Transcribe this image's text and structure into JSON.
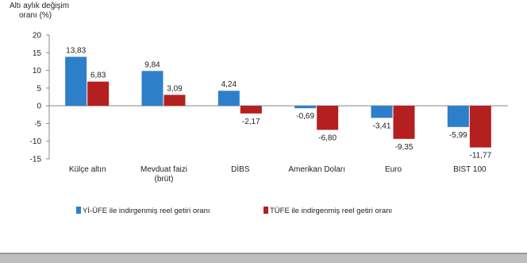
{
  "chart_data": {
    "type": "bar",
    "ylabel_line1": "Altı aylık değişim",
    "ylabel_line2": "oranı (%)",
    "ylim": [
      -15,
      20
    ],
    "yticks": [
      20,
      15,
      10,
      5,
      0,
      -5,
      -10,
      -15
    ],
    "grid": false,
    "legend_position": "bottom",
    "categories": [
      {
        "line1": "Külçe altın",
        "line2": ""
      },
      {
        "line1": "Mevduat faizi",
        "line2": "(brüt)"
      },
      {
        "line1": "DİBS",
        "line2": ""
      },
      {
        "line1": "Amerikan Doları",
        "line2": ""
      },
      {
        "line1": "Euro",
        "line2": ""
      },
      {
        "line1": "BIST 100",
        "line2": ""
      }
    ],
    "series": [
      {
        "name": "Yİ-ÜFE ile indirgenmiş reel getiri oranı",
        "color": "#2e7fc9",
        "values": [
          13.83,
          9.84,
          4.24,
          -0.69,
          -3.41,
          -5.99
        ],
        "labels": [
          "13,83",
          "9,84",
          "4,24",
          "-0,69",
          "-3,41",
          "-5,99"
        ]
      },
      {
        "name": "TÜFE ile indirgenmiş reel getiri oranı",
        "color": "#b4201f",
        "values": [
          6.83,
          3.09,
          -2.17,
          -6.8,
          -9.35,
          -11.77
        ],
        "labels": [
          "6,83",
          "3,09",
          "-2,17",
          "-6,80",
          "-9,35",
          "-11,77"
        ]
      }
    ]
  }
}
